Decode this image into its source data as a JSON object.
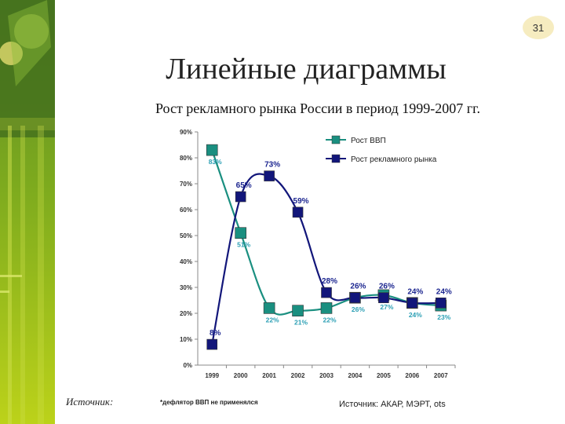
{
  "page_number": "31",
  "title": "Линейные диаграммы",
  "subtitle": "Рост рекламного рынка России в период 1999-2007 гг.",
  "source_label": "Источник:",
  "colors": {
    "gdp": "#1a8f80",
    "ad": "#12167a",
    "label_gdp": "#2b9fb4",
    "label_ad": "#1c2690"
  },
  "chart_data": {
    "type": "line",
    "categories": [
      "1999",
      "2000",
      "2001",
      "2002",
      "2003",
      "2004",
      "2005",
      "2006",
      "2007"
    ],
    "y_ticks": [
      "0%",
      "10%",
      "20%",
      "30%",
      "40%",
      "50%",
      "60%",
      "70%",
      "80%",
      "90%"
    ],
    "ylim": [
      0,
      90
    ],
    "grid": false,
    "legend_position": "top-right",
    "series": [
      {
        "name": "Рост ВВП",
        "values": [
          83,
          51,
          22,
          21,
          22,
          26,
          27,
          24,
          23
        ],
        "labels": [
          "83%",
          "51%",
          "22%",
          "21%",
          "22%",
          "26%",
          "27%",
          "24%",
          "23%"
        ]
      },
      {
        "name": "Рост рекламного рынка",
        "values": [
          8,
          65,
          73,
          59,
          28,
          26,
          26,
          24,
          24
        ],
        "labels": [
          "8%",
          "65%",
          "73%",
          "59%",
          "28%",
          "26%",
          "26%",
          "24%",
          "24%"
        ]
      }
    ],
    "footnote": "*дефлятор ВВП не применялся",
    "source": "Источник: АКАР, МЭРТ, ots"
  }
}
